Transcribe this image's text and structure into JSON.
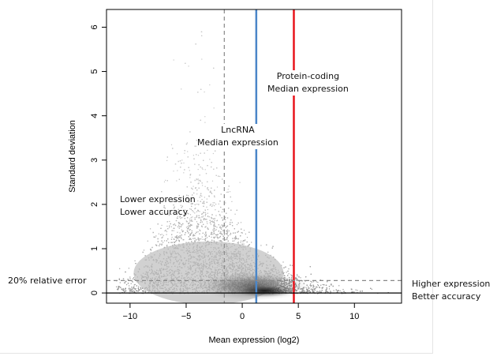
{
  "chart_data": {
    "type": "scatter",
    "style": "smoothed density scatter",
    "xlabel": "Mean expression (log2)",
    "ylabel": "Standard deviation",
    "xlim": [
      -12.1,
      14.2
    ],
    "ylim": [
      -0.23,
      6.4
    ],
    "xticks": [
      -10,
      -5,
      0,
      5,
      10
    ],
    "yticks": [
      0,
      1,
      2,
      3,
      4,
      5,
      6
    ],
    "reference_lines": [
      {
        "orientation": "vertical",
        "value": -1.6,
        "style": "dashed",
        "color": "#888888"
      },
      {
        "orientation": "vertical",
        "value": 1.25,
        "style": "solid",
        "color": "#4a86c8",
        "label": "LncRNA Median expression"
      },
      {
        "orientation": "vertical",
        "value": 4.6,
        "style": "solid",
        "color": "#e8141c",
        "label": "Protein-coding Median expression"
      },
      {
        "orientation": "horizontal",
        "value": 0.28,
        "style": "dashed",
        "color": "#888888",
        "label": "20%  relative error"
      },
      {
        "orientation": "horizontal",
        "value": 0,
        "style": "solid",
        "color": "#000000"
      }
    ],
    "density_peak": {
      "x": 2,
      "y": 0.05
    },
    "annotations": {
      "protein_line1": "Protein-coding",
      "protein_line2": "Median expression",
      "lnc_line1": "LncRNA",
      "lnc_line2": "Median expression",
      "lower_line1": "Lower expression",
      "lower_line2": "Lower accuracy",
      "relerr": "20%  relative error",
      "higher_line1": "Higher expression",
      "higher_line2": "Better accuracy"
    }
  }
}
